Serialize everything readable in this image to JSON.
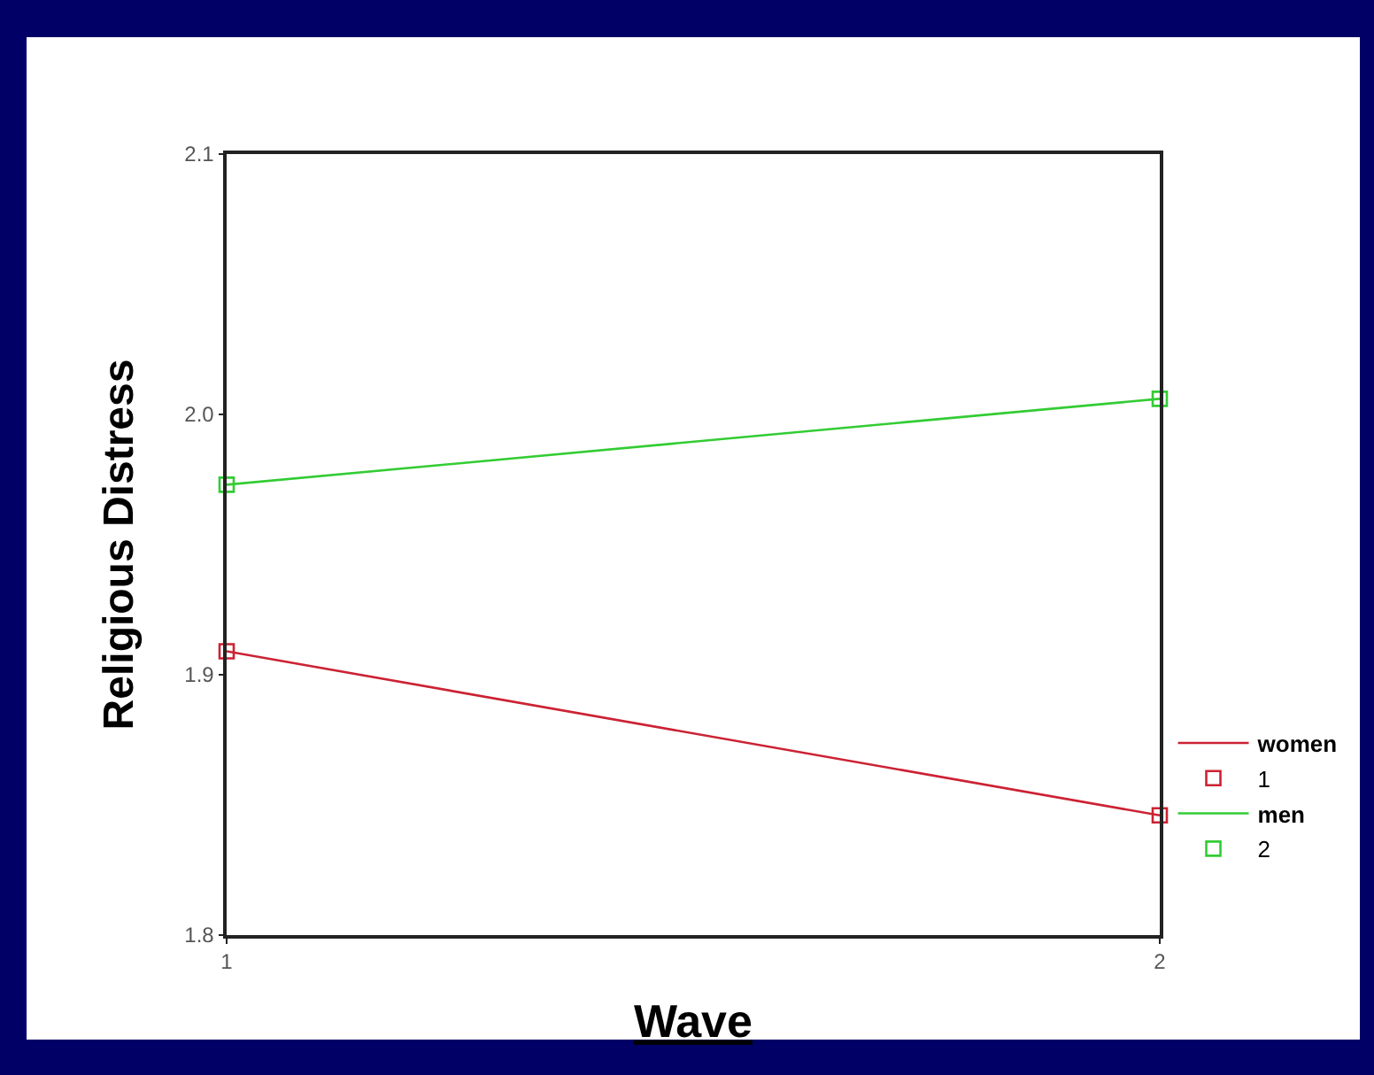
{
  "chart_data": {
    "type": "line",
    "xlabel": "Wave",
    "ylabel": "Religious Distress",
    "x": [
      1,
      2
    ],
    "series": [
      {
        "name": "women",
        "color": "#cc2233",
        "values": [
          1.909,
          1.846
        ]
      },
      {
        "name": "men",
        "color": "#33cc33",
        "values": [
          1.973,
          2.006
        ]
      }
    ],
    "annotations": [
      "1",
      "2"
    ],
    "xlim": [
      1,
      2
    ],
    "xticks": [
      1,
      2
    ],
    "ylim": [
      1.8,
      2.1
    ],
    "yticks": [
      1.8,
      1.9,
      {
        "value": 2,
        "label": "2.0"
      },
      2.1
    ],
    "legend": "bottom right",
    "marker": "square",
    "line_style": "solid"
  }
}
